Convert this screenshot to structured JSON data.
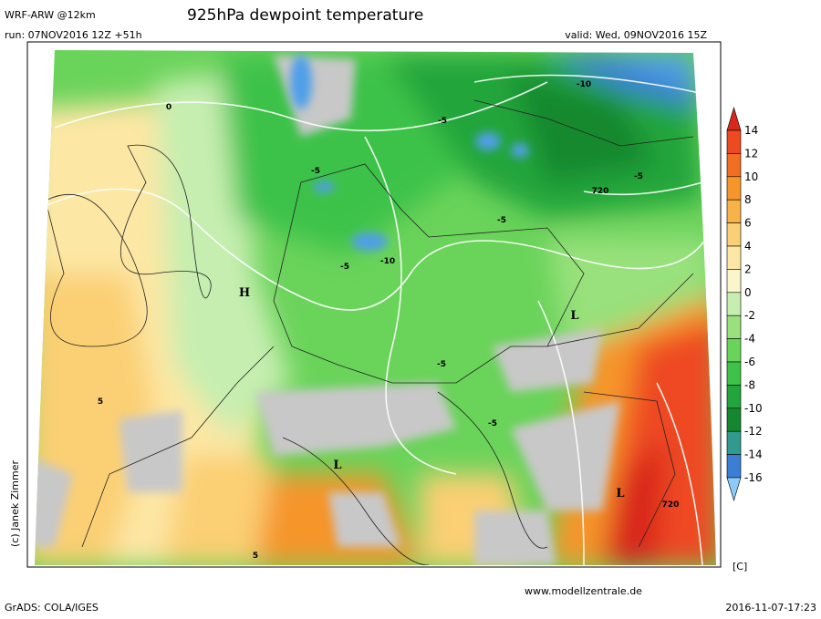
{
  "header": {
    "model": "WRF-ARW @12km",
    "title": "925hPa dewpoint temperature",
    "run": "run: 07NOV2016 12Z +51h",
    "valid": "valid: Wed, 09NOV2016 15Z"
  },
  "colorbar": {
    "ticks": [
      14,
      12,
      10,
      8,
      6,
      4,
      2,
      0,
      -2,
      -4,
      -6,
      -8,
      -10,
      -12,
      -14,
      -16
    ],
    "colors": [
      "#d8281c",
      "#ee4a22",
      "#f26e22",
      "#f5952a",
      "#f7b347",
      "#fbcf73",
      "#fde7a4",
      "#fbf5cc",
      "#c6eeb0",
      "#98e17c",
      "#6ad35a",
      "#3ec24a",
      "#22a53b",
      "#15882f",
      "#2f9b8f",
      "#3b7fd4",
      "#4f9fe8",
      "#8ccaf7"
    ],
    "unit": "[C]"
  },
  "map_labels": [
    "L",
    "L",
    "L",
    "720",
    "720",
    "-10",
    "-10",
    "-5",
    "-5",
    "-5",
    "-5",
    "-5",
    "-5",
    "-5",
    "0",
    "5",
    "5",
    "H"
  ],
  "footer": {
    "credit": "(c) Janek Zimmer",
    "website": "www.modellzentrale.de",
    "software": "GrADS: COLA/IGES",
    "timestamp": "2016-11-07-17:23"
  }
}
